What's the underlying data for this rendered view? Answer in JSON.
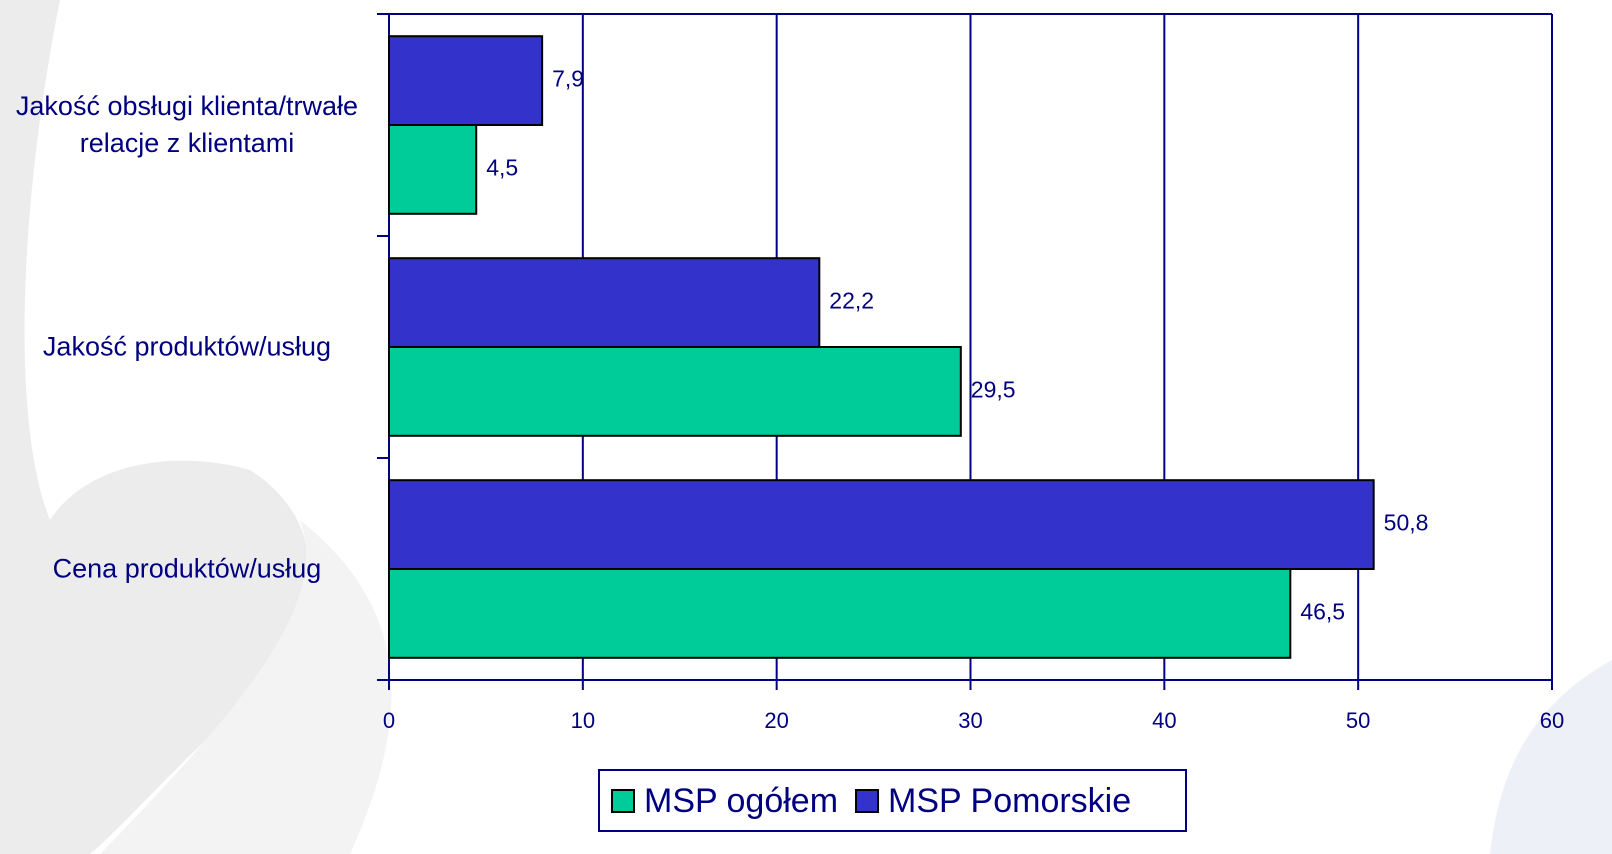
{
  "chart_data": {
    "type": "bar",
    "categories": [
      "Jakość obsługi klienta/trwałe relacje z klientami",
      "Jakość produktów/usług",
      "Cena produktów/usług"
    ],
    "series": [
      {
        "name": "MSP Pomorskie",
        "color": "#3333cc",
        "values": [
          7.9,
          22.2,
          50.8
        ],
        "value_labels": [
          "7,9",
          "22,2",
          "50,8"
        ]
      },
      {
        "name": "MSP ogółem",
        "color": "#00cc99",
        "values": [
          4.5,
          29.5,
          46.5
        ],
        "value_labels": [
          "4,5",
          "29,5",
          "46,5"
        ]
      }
    ],
    "legend_order": [
      "MSP ogółem",
      "MSP Pomorskie"
    ],
    "xlim": [
      0,
      60
    ],
    "xticks": [
      0,
      10,
      20,
      30,
      40,
      50,
      60
    ],
    "grid": true
  }
}
